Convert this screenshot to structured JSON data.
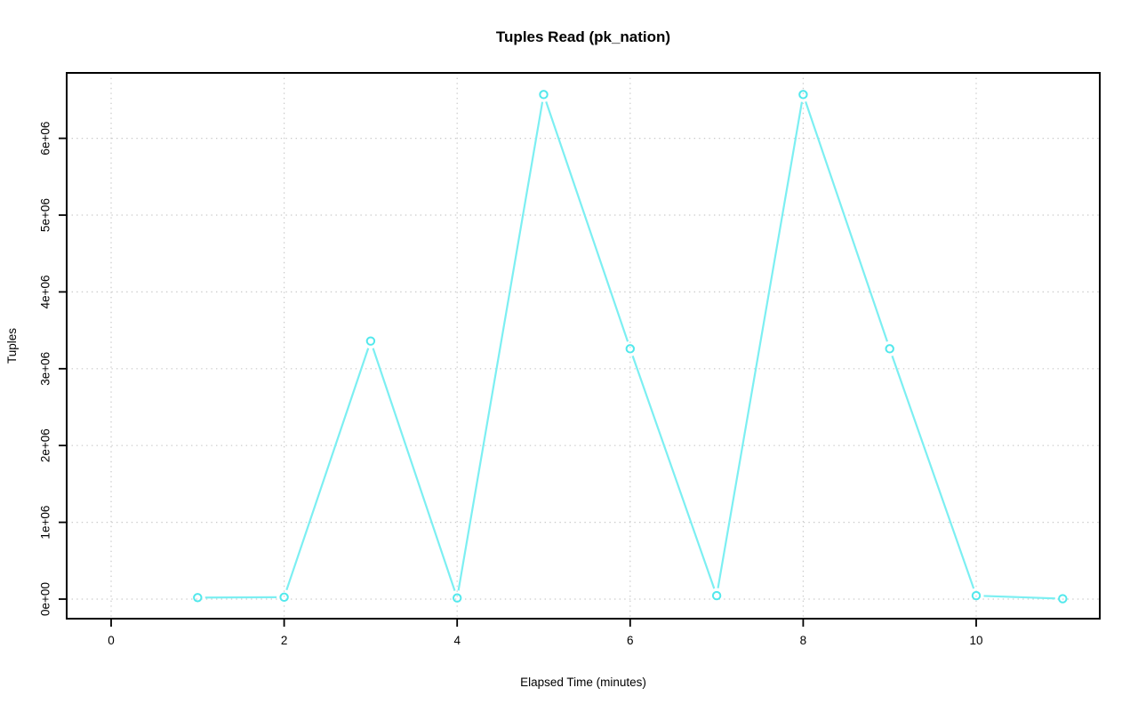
{
  "chart_data": {
    "type": "line",
    "title": "Tuples Read (pk_nation)",
    "xlabel": "Elapsed Time (minutes)",
    "ylabel": "Tuples",
    "series": [
      {
        "name": "tuples_read",
        "x": [
          1,
          2,
          3,
          4,
          5,
          6,
          7,
          8,
          9,
          10,
          11
        ],
        "y": [
          20000,
          25000,
          3360000,
          15000,
          6570000,
          3260000,
          45000,
          6570000,
          3260000,
          45000,
          5000
        ]
      }
    ],
    "x_ticks": [
      0,
      2,
      4,
      6,
      8,
      10
    ],
    "y_ticks": [
      {
        "value": 0,
        "label": "0e+00"
      },
      {
        "value": 1000000,
        "label": "1e+06"
      },
      {
        "value": 2000000,
        "label": "2e+06"
      },
      {
        "value": 3000000,
        "label": "3e+06"
      },
      {
        "value": 4000000,
        "label": "4e+06"
      },
      {
        "value": 5000000,
        "label": "5e+06"
      },
      {
        "value": 6000000,
        "label": "6e+06"
      }
    ],
    "xlim": [
      -0.51,
      11.45
    ],
    "ylim": [
      -260000,
      6850000
    ],
    "grid": "dotted",
    "legend": null,
    "marker": "open-circle",
    "line_type": "b"
  },
  "colors": {
    "line": "#7ceff2",
    "marker": "#52e8ec",
    "grid": "#c9c9c9",
    "axis": "#000000",
    "background": "#ffffff"
  }
}
